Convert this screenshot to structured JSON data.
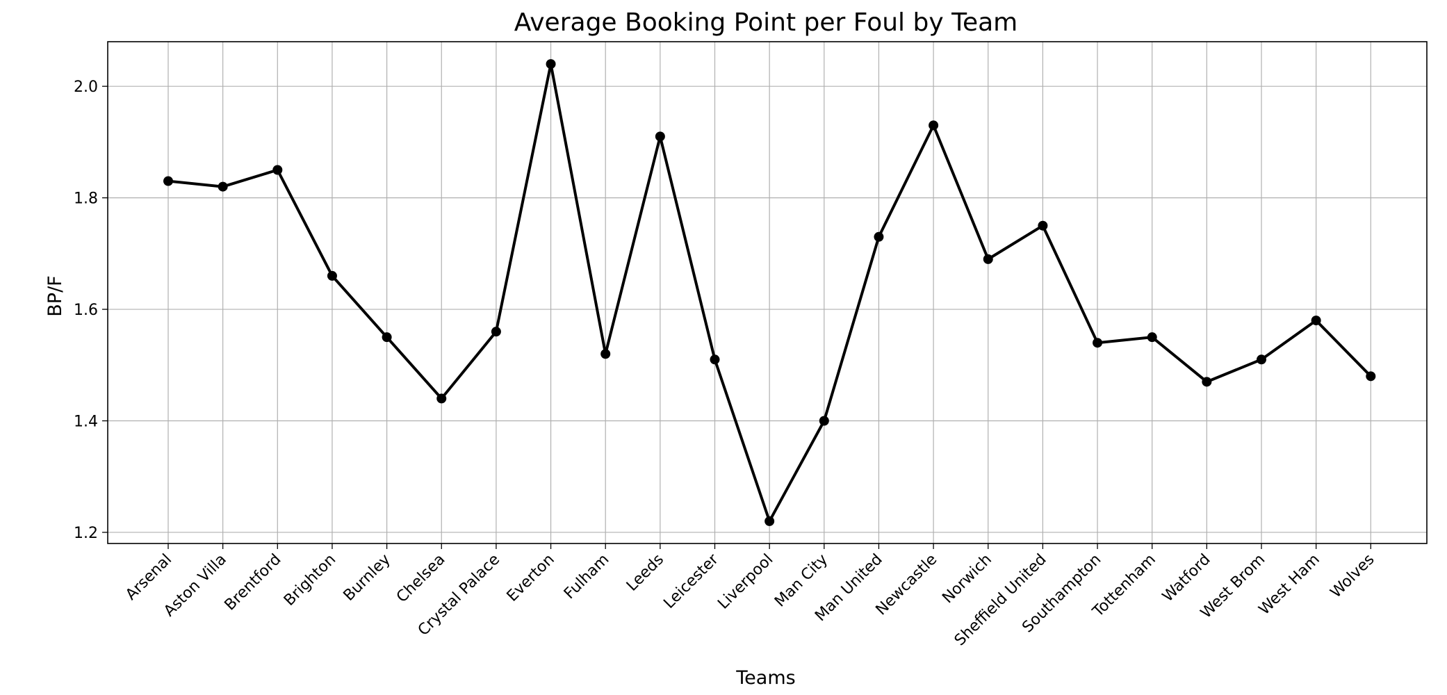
{
  "chart_data": {
    "type": "line",
    "title": "Average Booking Point per Foul by Team",
    "xlabel": "Teams",
    "ylabel": "BP/F",
    "categories": [
      "Arsenal",
      "Aston Villa",
      "Brentford",
      "Brighton",
      "Burnley",
      "Chelsea",
      "Crystal Palace",
      "Everton",
      "Fulham",
      "Leeds",
      "Leicester",
      "Liverpool",
      "Man City",
      "Man United",
      "Newcastle",
      "Norwich",
      "Sheffield United",
      "Southampton",
      "Tottenham",
      "Watford",
      "West Brom",
      "West Ham",
      "Wolves"
    ],
    "values": [
      1.83,
      1.82,
      1.85,
      1.66,
      1.55,
      1.44,
      1.56,
      2.04,
      1.52,
      1.91,
      1.51,
      1.22,
      1.4,
      1.73,
      1.93,
      1.69,
      1.75,
      1.54,
      1.55,
      1.47,
      1.51,
      1.58,
      1.48
    ],
    "ylim": [
      1.18,
      2.08
    ],
    "yticks": [
      1.2,
      1.4,
      1.6,
      1.8,
      2.0
    ],
    "ytick_labels": [
      "1.2",
      "1.4",
      "1.6",
      "1.8",
      "2.0"
    ],
    "grid": true,
    "marker": "circle",
    "line_color": "#000000"
  }
}
